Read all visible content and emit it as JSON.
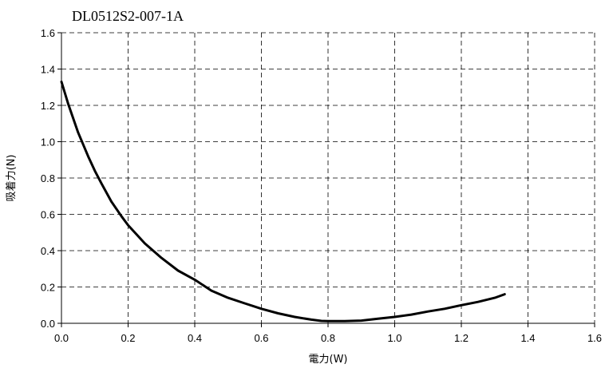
{
  "chart_data": {
    "type": "line",
    "title": "DL0512S2-007-1A",
    "xlabel": "電力(W)",
    "ylabel": "吸着力(N)",
    "xlim": [
      0.0,
      1.6
    ],
    "ylim": [
      0.0,
      1.6
    ],
    "x_ticks": [
      "0.0",
      "0.2",
      "0.4",
      "0.6",
      "0.8",
      "1.0",
      "1.2",
      "1.4",
      "1.6"
    ],
    "y_ticks": [
      "0.0",
      "0.2",
      "0.4",
      "0.6",
      "0.8",
      "1.0",
      "1.2",
      "1.4",
      "1.6"
    ],
    "grid": true,
    "legend": "none",
    "line_color": "#000000",
    "series": [
      {
        "x": [
          0.0,
          0.02,
          0.05,
          0.08,
          0.1,
          0.12,
          0.15,
          0.18,
          0.2,
          0.25,
          0.3,
          0.35,
          0.4,
          0.45,
          0.5,
          0.55,
          0.6,
          0.65,
          0.7,
          0.75,
          0.78,
          0.8,
          0.85,
          0.9,
          0.95,
          1.0,
          1.05,
          1.1,
          1.15,
          1.2,
          1.25,
          1.3,
          1.33
        ],
        "y": [
          1.33,
          1.21,
          1.05,
          0.92,
          0.84,
          0.77,
          0.67,
          0.59,
          0.54,
          0.44,
          0.36,
          0.29,
          0.24,
          0.18,
          0.14,
          0.11,
          0.08,
          0.055,
          0.035,
          0.02,
          0.013,
          0.012,
          0.012,
          0.015,
          0.025,
          0.035,
          0.048,
          0.065,
          0.08,
          0.1,
          0.118,
          0.14,
          0.16
        ]
      }
    ]
  }
}
